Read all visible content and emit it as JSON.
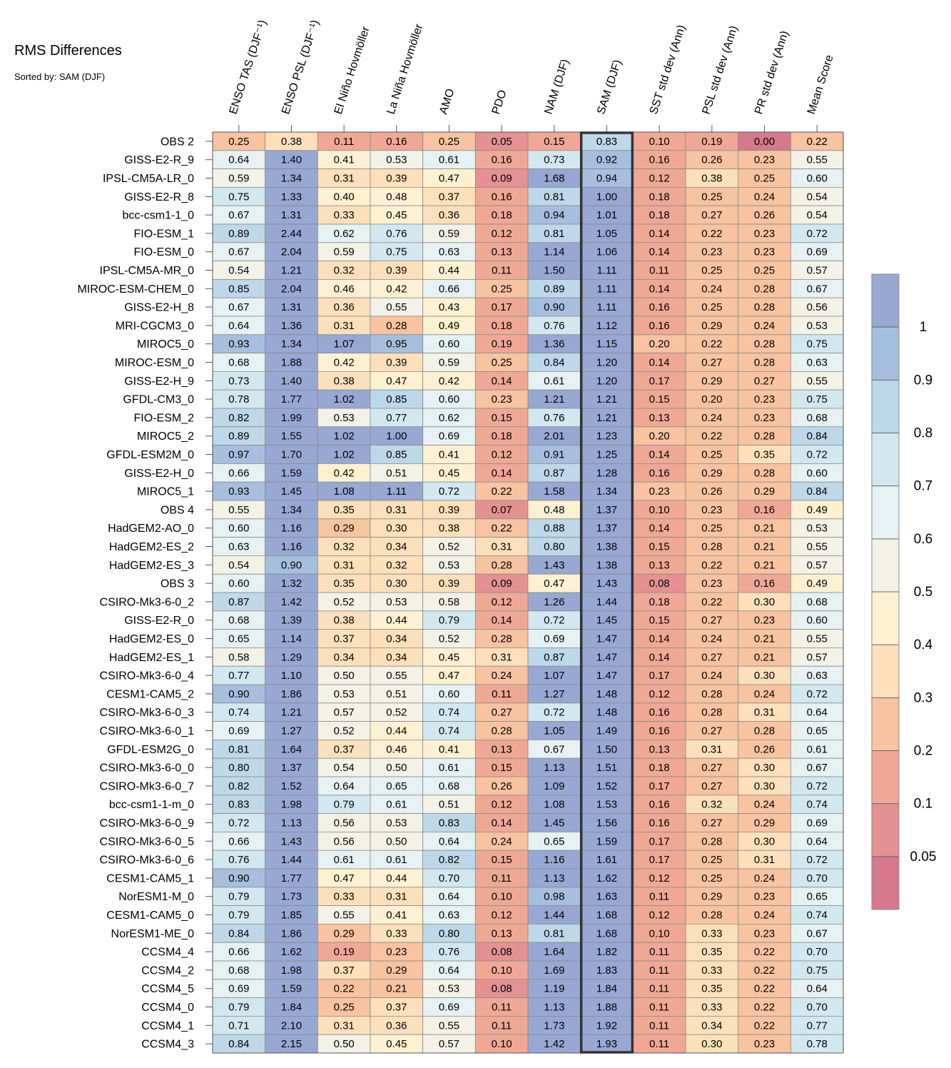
{
  "chart_data": {
    "type": "heatmap",
    "title": "RMS Differences",
    "subtitle": "Sorted by: SAM (DJF)",
    "columns": [
      "ENSO TAS (DJF⁻¹)",
      "ENSO PSL (DJF⁻¹)",
      "El Niño Hovmöller",
      "La Niña Hovmöller",
      "AMO",
      "PDO",
      "NAM (DJF)",
      "SAM (DJF)",
      "SST std dev (Ann)",
      "PSL std dev (Ann)",
      "PR std dev (Ann)",
      "Mean Score"
    ],
    "highlight_column": "SAM (DJF)",
    "rows": [
      "OBS 2",
      "GISS-E2-R_9",
      "IPSL-CM5A-LR_0",
      "GISS-E2-R_8",
      "bcc-csm1-1_0",
      "FIO-ESM_1",
      "FIO-ESM_0",
      "IPSL-CM5A-MR_0",
      "MIROC-ESM-CHEM_0",
      "GISS-E2-H_8",
      "MRI-CGCM3_0",
      "MIROC5_0",
      "MIROC-ESM_0",
      "GISS-E2-H_9",
      "GFDL-CM3_0",
      "FIO-ESM_2",
      "MIROC5_2",
      "GFDL-ESM2M_0",
      "GISS-E2-H_0",
      "MIROC5_1",
      "OBS 4",
      "HadGEM2-AO_0",
      "HadGEM2-ES_2",
      "HadGEM2-ES_3",
      "OBS 3",
      "CSIRO-Mk3-6-0_2",
      "GISS-E2-R_0",
      "HadGEM2-ES_0",
      "HadGEM2-ES_1",
      "CSIRO-Mk3-6-0_4",
      "CESM1-CAM5_2",
      "CSIRO-Mk3-6-0_3",
      "CSIRO-Mk3-6-0_1",
      "GFDL-ESM2G_0",
      "CSIRO-Mk3-6-0_0",
      "CSIRO-Mk3-6-0_7",
      "bcc-csm1-1-m_0",
      "CSIRO-Mk3-6-0_9",
      "CSIRO-Mk3-6-0_5",
      "CSIRO-Mk3-6-0_6",
      "CESM1-CAM5_1",
      "NorESM1-M_0",
      "CESM1-CAM5_0",
      "NorESM1-ME_0",
      "CCSM4_4",
      "CCSM4_2",
      "CCSM4_5",
      "CCSM4_0",
      "CCSM4_1",
      "CCSM4_3"
    ],
    "values": [
      [
        "0.25",
        "0.38",
        "0.11",
        "0.16",
        "0.25",
        "0.05",
        "0.15",
        "0.83",
        "0.10",
        "0.19",
        "0.00",
        "0.22"
      ],
      [
        "0.64",
        "1.40",
        "0.41",
        "0.53",
        "0.61",
        "0.16",
        "0.73",
        "0.92",
        "0.16",
        "0.26",
        "0.23",
        "0.55"
      ],
      [
        "0.59",
        "1.34",
        "0.31",
        "0.39",
        "0.47",
        "0.09",
        "1.68",
        "0.94",
        "0.12",
        "0.38",
        "0.25",
        "0.60"
      ],
      [
        "0.75",
        "1.33",
        "0.40",
        "0.48",
        "0.37",
        "0.16",
        "0.81",
        "1.00",
        "0.18",
        "0.25",
        "0.24",
        "0.54"
      ],
      [
        "0.67",
        "1.31",
        "0.33",
        "0.45",
        "0.36",
        "0.18",
        "0.94",
        "1.01",
        "0.18",
        "0.27",
        "0.26",
        "0.54"
      ],
      [
        "0.89",
        "2.44",
        "0.62",
        "0.76",
        "0.59",
        "0.12",
        "0.81",
        "1.05",
        "0.14",
        "0.22",
        "0.23",
        "0.72"
      ],
      [
        "0.67",
        "2.04",
        "0.59",
        "0.75",
        "0.63",
        "0.13",
        "1.14",
        "1.06",
        "0.14",
        "0.23",
        "0.23",
        "0.69"
      ],
      [
        "0.54",
        "1.21",
        "0.32",
        "0.39",
        "0.44",
        "0.11",
        "1.50",
        "1.11",
        "0.11",
        "0.25",
        "0.25",
        "0.57"
      ],
      [
        "0.85",
        "2.04",
        "0.46",
        "0.42",
        "0.66",
        "0.25",
        "0.89",
        "1.11",
        "0.14",
        "0.24",
        "0.28",
        "0.67"
      ],
      [
        "0.67",
        "1.31",
        "0.36",
        "0.55",
        "0.43",
        "0.17",
        "0.90",
        "1.11",
        "0.16",
        "0.25",
        "0.28",
        "0.56"
      ],
      [
        "0.64",
        "1.36",
        "0.31",
        "0.28",
        "0.49",
        "0.18",
        "0.76",
        "1.12",
        "0.16",
        "0.29",
        "0.24",
        "0.53"
      ],
      [
        "0.93",
        "1.34",
        "1.07",
        "0.95",
        "0.60",
        "0.19",
        "1.36",
        "1.15",
        "0.20",
        "0.22",
        "0.28",
        "0.75"
      ],
      [
        "0.68",
        "1.88",
        "0.42",
        "0.39",
        "0.59",
        "0.25",
        "0.84",
        "1.20",
        "0.14",
        "0.27",
        "0.28",
        "0.63"
      ],
      [
        "0.73",
        "1.40",
        "0.38",
        "0.47",
        "0.42",
        "0.14",
        "0.61",
        "1.20",
        "0.17",
        "0.29",
        "0.27",
        "0.55"
      ],
      [
        "0.78",
        "1.77",
        "1.02",
        "0.85",
        "0.60",
        "0.23",
        "1.21",
        "1.21",
        "0.15",
        "0.20",
        "0.23",
        "0.75"
      ],
      [
        "0.82",
        "1.99",
        "0.53",
        "0.77",
        "0.62",
        "0.15",
        "0.76",
        "1.21",
        "0.13",
        "0.24",
        "0.23",
        "0.68"
      ],
      [
        "0.89",
        "1.55",
        "1.02",
        "1.00",
        "0.69",
        "0.18",
        "2.01",
        "1.23",
        "0.20",
        "0.22",
        "0.28",
        "0.84"
      ],
      [
        "0.97",
        "1.70",
        "1.02",
        "0.85",
        "0.41",
        "0.12",
        "0.91",
        "1.25",
        "0.14",
        "0.25",
        "0.35",
        "0.72"
      ],
      [
        "0.66",
        "1.59",
        "0.42",
        "0.51",
        "0.45",
        "0.14",
        "0.87",
        "1.28",
        "0.16",
        "0.29",
        "0.28",
        "0.60"
      ],
      [
        "0.93",
        "1.45",
        "1.08",
        "1.11",
        "0.72",
        "0.22",
        "1.58",
        "1.34",
        "0.23",
        "0.26",
        "0.29",
        "0.84"
      ],
      [
        "0.55",
        "1.34",
        "0.35",
        "0.31",
        "0.39",
        "0.07",
        "0.48",
        "1.37",
        "0.10",
        "0.23",
        "0.16",
        "0.49"
      ],
      [
        "0.60",
        "1.16",
        "0.29",
        "0.30",
        "0.38",
        "0.22",
        "0.88",
        "1.37",
        "0.14",
        "0.25",
        "0.21",
        "0.53"
      ],
      [
        "0.63",
        "1.16",
        "0.32",
        "0.34",
        "0.52",
        "0.31",
        "0.80",
        "1.38",
        "0.15",
        "0.28",
        "0.21",
        "0.55"
      ],
      [
        "0.54",
        "0.90",
        "0.31",
        "0.32",
        "0.53",
        "0.28",
        "1.43",
        "1.38",
        "0.13",
        "0.22",
        "0.21",
        "0.57"
      ],
      [
        "0.60",
        "1.32",
        "0.35",
        "0.30",
        "0.39",
        "0.09",
        "0.47",
        "1.43",
        "0.08",
        "0.23",
        "0.16",
        "0.49"
      ],
      [
        "0.87",
        "1.42",
        "0.52",
        "0.53",
        "0.58",
        "0.12",
        "1.26",
        "1.44",
        "0.18",
        "0.22",
        "0.30",
        "0.68"
      ],
      [
        "0.68",
        "1.39",
        "0.38",
        "0.44",
        "0.79",
        "0.14",
        "0.72",
        "1.45",
        "0.15",
        "0.27",
        "0.23",
        "0.60"
      ],
      [
        "0.65",
        "1.14",
        "0.37",
        "0.34",
        "0.52",
        "0.28",
        "0.69",
        "1.47",
        "0.14",
        "0.24",
        "0.21",
        "0.55"
      ],
      [
        "0.58",
        "1.29",
        "0.34",
        "0.34",
        "0.45",
        "0.31",
        "0.87",
        "1.47",
        "0.14",
        "0.27",
        "0.21",
        "0.57"
      ],
      [
        "0.77",
        "1.10",
        "0.50",
        "0.55",
        "0.47",
        "0.24",
        "1.07",
        "1.47",
        "0.17",
        "0.24",
        "0.30",
        "0.63"
      ],
      [
        "0.90",
        "1.86",
        "0.53",
        "0.51",
        "0.60",
        "0.11",
        "1.27",
        "1.48",
        "0.12",
        "0.28",
        "0.24",
        "0.72"
      ],
      [
        "0.74",
        "1.21",
        "0.57",
        "0.52",
        "0.74",
        "0.27",
        "0.72",
        "1.48",
        "0.16",
        "0.28",
        "0.31",
        "0.64"
      ],
      [
        "0.69",
        "1.27",
        "0.52",
        "0.44",
        "0.74",
        "0.28",
        "1.05",
        "1.49",
        "0.16",
        "0.27",
        "0.28",
        "0.65"
      ],
      [
        "0.81",
        "1.64",
        "0.37",
        "0.46",
        "0.41",
        "0.13",
        "0.67",
        "1.50",
        "0.13",
        "0.31",
        "0.26",
        "0.61"
      ],
      [
        "0.80",
        "1.37",
        "0.54",
        "0.50",
        "0.61",
        "0.15",
        "1.13",
        "1.51",
        "0.18",
        "0.27",
        "0.30",
        "0.67"
      ],
      [
        "0.82",
        "1.52",
        "0.64",
        "0.65",
        "0.68",
        "0.26",
        "1.09",
        "1.52",
        "0.17",
        "0.27",
        "0.30",
        "0.72"
      ],
      [
        "0.83",
        "1.98",
        "0.79",
        "0.61",
        "0.51",
        "0.12",
        "1.08",
        "1.53",
        "0.16",
        "0.32",
        "0.24",
        "0.74"
      ],
      [
        "0.72",
        "1.13",
        "0.56",
        "0.53",
        "0.83",
        "0.14",
        "1.45",
        "1.56",
        "0.16",
        "0.27",
        "0.29",
        "0.69"
      ],
      [
        "0.66",
        "1.43",
        "0.56",
        "0.50",
        "0.64",
        "0.24",
        "0.65",
        "1.59",
        "0.17",
        "0.28",
        "0.30",
        "0.64"
      ],
      [
        "0.76",
        "1.44",
        "0.61",
        "0.61",
        "0.82",
        "0.15",
        "1.16",
        "1.61",
        "0.17",
        "0.25",
        "0.31",
        "0.72"
      ],
      [
        "0.90",
        "1.77",
        "0.47",
        "0.44",
        "0.70",
        "0.11",
        "1.13",
        "1.62",
        "0.12",
        "0.25",
        "0.24",
        "0.70"
      ],
      [
        "0.79",
        "1.73",
        "0.33",
        "0.31",
        "0.64",
        "0.10",
        "0.98",
        "1.63",
        "0.11",
        "0.29",
        "0.23",
        "0.65"
      ],
      [
        "0.79",
        "1.85",
        "0.55",
        "0.41",
        "0.63",
        "0.12",
        "1.44",
        "1.68",
        "0.12",
        "0.28",
        "0.24",
        "0.74"
      ],
      [
        "0.84",
        "1.86",
        "0.29",
        "0.33",
        "0.80",
        "0.13",
        "0.81",
        "1.68",
        "0.10",
        "0.33",
        "0.23",
        "0.67"
      ],
      [
        "0.66",
        "1.62",
        "0.19",
        "0.23",
        "0.76",
        "0.08",
        "1.64",
        "1.82",
        "0.11",
        "0.35",
        "0.22",
        "0.70"
      ],
      [
        "0.68",
        "1.98",
        "0.37",
        "0.29",
        "0.64",
        "0.10",
        "1.69",
        "1.83",
        "0.11",
        "0.33",
        "0.22",
        "0.75"
      ],
      [
        "0.69",
        "1.59",
        "0.22",
        "0.21",
        "0.53",
        "0.08",
        "1.19",
        "1.84",
        "0.11",
        "0.35",
        "0.22",
        "0.64"
      ],
      [
        "0.79",
        "1.84",
        "0.25",
        "0.37",
        "0.69",
        "0.11",
        "1.13",
        "1.88",
        "0.11",
        "0.33",
        "0.22",
        "0.70"
      ],
      [
        "0.71",
        "2.10",
        "0.31",
        "0.36",
        "0.55",
        "0.11",
        "1.73",
        "1.92",
        "0.11",
        "0.34",
        "0.22",
        "0.77"
      ],
      [
        "0.84",
        "2.15",
        "0.50",
        "0.45",
        "0.57",
        "0.10",
        "1.42",
        "1.93",
        "0.11",
        "0.30",
        "0.23",
        "0.78"
      ]
    ],
    "colorbar": {
      "bounds": [
        0,
        0.05,
        0.1,
        0.2,
        0.3,
        0.4,
        0.5,
        0.6,
        0.7,
        0.8,
        0.9,
        1,
        100
      ],
      "labels": [
        "0.05",
        "0.1",
        "0.2",
        "0.3",
        "0.4",
        "0.5",
        "0.6",
        "0.7",
        "0.8",
        "0.9",
        "1"
      ],
      "colors": [
        "#d6798c",
        "#e49191",
        "#f0a896",
        "#f7c3a1",
        "#fce0bb",
        "#fdf1d2",
        "#f3f2e7",
        "#e5f1f2",
        "#d2e8f0",
        "#bdd8e9",
        "#a6bfde",
        "#97a8d3"
      ]
    }
  }
}
